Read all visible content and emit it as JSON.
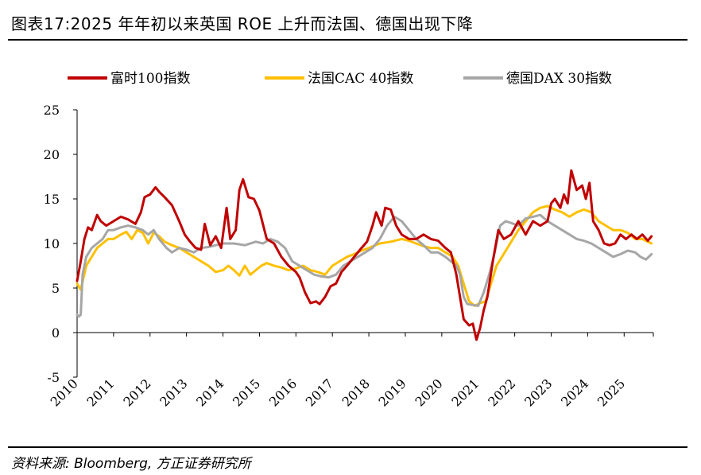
{
  "title": "图表17:2025 年年初以来英国 ROE 上升而法国、德国出现下降",
  "source": "资料来源: Bloomberg, 方正证券研究所",
  "chart_data": {
    "type": "line",
    "title": "图表17:2025 年年初以来英国 ROE 上升而法国、德国出现下降",
    "xlabel": "",
    "ylabel": "",
    "ylim": [
      -5,
      25
    ],
    "yticks": [
      25,
      20,
      15,
      10,
      5,
      0,
      -5
    ],
    "xlim": [
      2010,
      2025.8
    ],
    "xticks": [
      "2010",
      "2011",
      "2012",
      "2013",
      "2014",
      "2015",
      "2016",
      "2017",
      "2018",
      "2019",
      "2020",
      "2021",
      "2022",
      "2023",
      "2024",
      "2025"
    ],
    "legend_position": "top",
    "grid": false,
    "series": [
      {
        "name": "富时100指数",
        "color": "#c00000",
        "x": [
          2010.0,
          2010.1,
          2010.2,
          2010.3,
          2010.4,
          2010.55,
          2010.65,
          2010.8,
          2011.0,
          2011.2,
          2011.4,
          2011.6,
          2011.75,
          2011.85,
          2012.0,
          2012.15,
          2012.25,
          2012.4,
          2012.6,
          2012.8,
          2012.95,
          2013.1,
          2013.25,
          2013.4,
          2013.5,
          2013.65,
          2013.8,
          2013.95,
          2014.1,
          2014.2,
          2014.35,
          2014.45,
          2014.55,
          2014.7,
          2014.85,
          2015.0,
          2015.2,
          2015.4,
          2015.6,
          2015.8,
          2016.0,
          2016.1,
          2016.25,
          2016.4,
          2016.55,
          2016.65,
          2016.8,
          2016.95,
          2017.1,
          2017.25,
          2017.4,
          2017.6,
          2017.8,
          2017.95,
          2018.1,
          2018.2,
          2018.35,
          2018.45,
          2018.6,
          2018.75,
          2018.9,
          2019.1,
          2019.3,
          2019.5,
          2019.7,
          2019.9,
          2020.1,
          2020.25,
          2020.4,
          2020.5,
          2020.6,
          2020.75,
          2020.85,
          2020.95,
          2021.05,
          2021.15,
          2021.25,
          2021.4,
          2021.55,
          2021.7,
          2021.9,
          2022.1,
          2022.3,
          2022.5,
          2022.7,
          2022.9,
          2023.0,
          2023.1,
          2023.25,
          2023.35,
          2023.45,
          2023.55,
          2023.7,
          2023.85,
          2023.95,
          2024.05,
          2024.15,
          2024.3,
          2024.45,
          2024.6,
          2024.75,
          2024.9,
          2025.05,
          2025.2,
          2025.35,
          2025.5,
          2025.65,
          2025.75
        ],
        "values": [
          5.8,
          8.0,
          10.5,
          11.8,
          11.5,
          13.2,
          12.5,
          12.0,
          12.5,
          13.0,
          12.7,
          12.2,
          13.5,
          15.2,
          15.5,
          16.3,
          15.8,
          15.2,
          14.3,
          12.5,
          11.0,
          10.2,
          9.5,
          9.3,
          12.2,
          9.8,
          10.8,
          9.5,
          14.0,
          10.5,
          11.5,
          16.0,
          17.2,
          15.2,
          15.0,
          13.7,
          10.5,
          10.0,
          8.5,
          7.5,
          6.8,
          6.2,
          4.5,
          3.3,
          3.5,
          3.2,
          4.0,
          5.2,
          5.5,
          6.8,
          7.5,
          8.5,
          9.5,
          10.2,
          12.0,
          13.5,
          12.0,
          14.0,
          13.8,
          12.0,
          11.0,
          10.5,
          10.5,
          11.0,
          10.5,
          10.3,
          9.5,
          9.0,
          6.5,
          4.0,
          1.5,
          0.8,
          1.0,
          -0.8,
          0.5,
          2.5,
          4.0,
          8.0,
          11.5,
          10.5,
          11.0,
          12.5,
          11.0,
          12.5,
          12.0,
          12.5,
          14.5,
          15.0,
          14.0,
          15.5,
          14.5,
          18.2,
          16.0,
          16.5,
          15.0,
          16.8,
          12.5,
          11.5,
          10.0,
          9.8,
          10.0,
          11.0,
          10.5,
          11.0,
          10.5,
          11.0,
          10.3,
          10.8
        ]
      },
      {
        "name": "法国CAC 40指数",
        "color": "#ffc000",
        "x": [
          2010.0,
          2010.1,
          2010.25,
          2010.4,
          2010.55,
          2010.7,
          2010.85,
          2011.0,
          2011.2,
          2011.35,
          2011.5,
          2011.65,
          2011.8,
          2011.95,
          2012.1,
          2012.25,
          2012.4,
          2012.6,
          2012.8,
          2013.0,
          2013.2,
          2013.4,
          2013.6,
          2013.8,
          2014.0,
          2014.15,
          2014.3,
          2014.45,
          2014.6,
          2014.75,
          2014.9,
          2015.05,
          2015.2,
          2015.4,
          2015.6,
          2015.8,
          2016.0,
          2016.2,
          2016.4,
          2016.6,
          2016.8,
          2017.0,
          2017.2,
          2017.4,
          2017.6,
          2017.8,
          2018.0,
          2018.3,
          2018.6,
          2018.9,
          2019.1,
          2019.3,
          2019.5,
          2019.7,
          2019.9,
          2020.1,
          2020.3,
          2020.45,
          2020.6,
          2020.75,
          2020.9,
          2021.05,
          2021.2,
          2021.35,
          2021.5,
          2021.65,
          2021.8,
          2021.95,
          2022.1,
          2022.3,
          2022.5,
          2022.7,
          2022.9,
          2023.1,
          2023.3,
          2023.5,
          2023.7,
          2023.9,
          2024.1,
          2024.3,
          2024.5,
          2024.7,
          2024.9,
          2025.1,
          2025.3,
          2025.5,
          2025.75
        ],
        "values": [
          5.5,
          4.8,
          7.5,
          8.5,
          9.5,
          10.0,
          10.5,
          10.5,
          11.0,
          11.3,
          10.5,
          11.5,
          11.2,
          10.0,
          11.2,
          10.8,
          10.2,
          9.8,
          9.5,
          9.0,
          8.5,
          8.0,
          7.5,
          6.8,
          7.0,
          7.5,
          7.0,
          6.4,
          7.5,
          6.5,
          7.0,
          7.5,
          7.8,
          7.5,
          7.3,
          7.0,
          7.2,
          7.5,
          7.0,
          6.8,
          6.5,
          7.5,
          8.0,
          8.5,
          8.8,
          9.2,
          9.5,
          10.0,
          10.2,
          10.5,
          10.3,
          10.0,
          9.7,
          9.5,
          9.5,
          9.0,
          8.5,
          7.5,
          5.5,
          3.5,
          3.0,
          3.3,
          3.5,
          5.5,
          7.5,
          8.5,
          9.5,
          10.5,
          11.5,
          12.5,
          13.5,
          14.0,
          14.2,
          13.8,
          13.5,
          13.0,
          13.5,
          13.8,
          13.5,
          12.5,
          12.0,
          11.5,
          11.5,
          11.2,
          10.5,
          10.5,
          10.0
        ]
      },
      {
        "name": "德国DAX 30指数",
        "color": "#a6a6a6",
        "x": [
          2010.0,
          2010.05,
          2010.1,
          2010.15,
          2010.25,
          2010.4,
          2010.55,
          2010.7,
          2010.85,
          2011.0,
          2011.2,
          2011.4,
          2011.6,
          2011.8,
          2011.95,
          2012.1,
          2012.25,
          2012.45,
          2012.6,
          2012.8,
          2013.0,
          2013.2,
          2013.4,
          2013.6,
          2013.8,
          2014.0,
          2014.3,
          2014.6,
          2014.9,
          2015.1,
          2015.3,
          2015.5,
          2015.7,
          2015.9,
          2016.1,
          2016.3,
          2016.5,
          2016.7,
          2016.9,
          2017.1,
          2017.3,
          2017.5,
          2017.7,
          2017.9,
          2018.1,
          2018.3,
          2018.5,
          2018.7,
          2018.9,
          2019.1,
          2019.3,
          2019.5,
          2019.7,
          2019.9,
          2020.1,
          2020.25,
          2020.4,
          2020.5,
          2020.6,
          2020.7,
          2020.85,
          2021.0,
          2021.15,
          2021.3,
          2021.45,
          2021.6,
          2021.75,
          2021.9,
          2022.1,
          2022.3,
          2022.5,
          2022.7,
          2022.9,
          2023.1,
          2023.3,
          2023.5,
          2023.7,
          2023.9,
          2024.1,
          2024.3,
          2024.5,
          2024.7,
          2024.9,
          2025.1,
          2025.3,
          2025.45,
          2025.6,
          2025.75
        ],
        "values": [
          2.0,
          1.8,
          2.0,
          6.5,
          8.5,
          9.5,
          10.0,
          10.5,
          11.5,
          11.5,
          11.8,
          12.0,
          11.8,
          11.5,
          11.0,
          11.5,
          10.5,
          9.5,
          9.0,
          9.5,
          9.3,
          9.0,
          9.5,
          9.6,
          9.8,
          10.0,
          10.0,
          9.8,
          10.2,
          10.0,
          10.5,
          10.2,
          9.5,
          8.0,
          7.5,
          7.0,
          6.5,
          6.3,
          6.2,
          6.5,
          7.5,
          8.0,
          8.5,
          9.0,
          9.5,
          10.5,
          12.0,
          13.0,
          12.5,
          11.5,
          10.5,
          9.8,
          9.0,
          9.0,
          8.5,
          8.0,
          7.5,
          6.5,
          4.0,
          3.2,
          3.1,
          3.0,
          4.5,
          6.5,
          9.0,
          12.0,
          12.5,
          12.3,
          12.0,
          12.8,
          13.0,
          13.2,
          12.5,
          12.0,
          11.5,
          11.0,
          10.5,
          10.3,
          10.0,
          9.5,
          9.0,
          8.5,
          8.8,
          9.2,
          9.0,
          8.5,
          8.2,
          8.8
        ]
      }
    ]
  }
}
